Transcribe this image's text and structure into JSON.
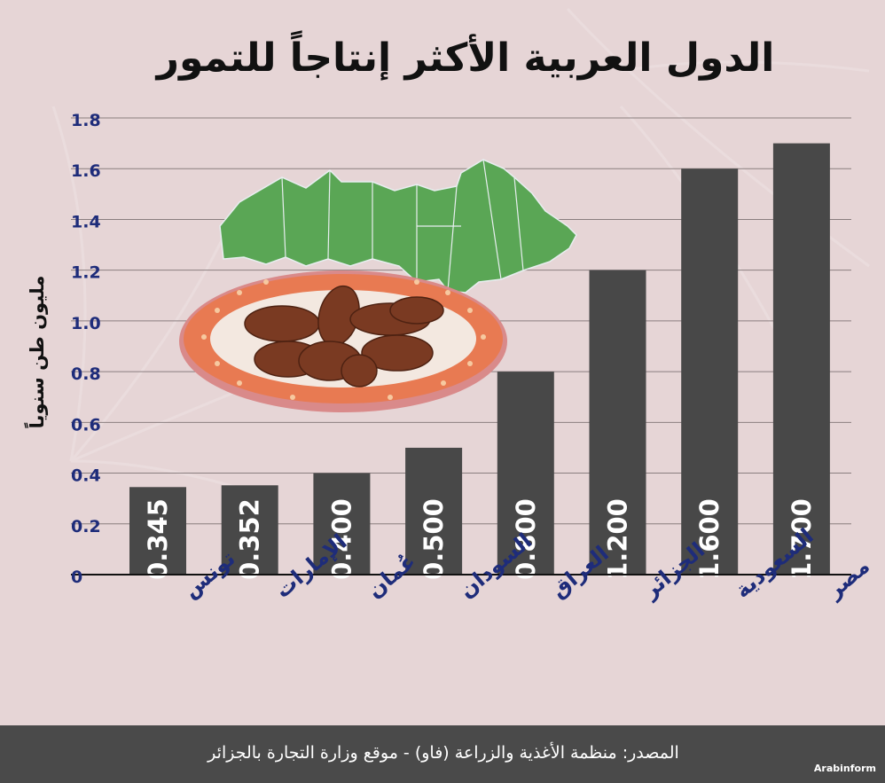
{
  "title": "الدول العربية الأكثر إنتاجاً للتمور",
  "source": "المصدر: منظمة الأغذية والزراعة (فاو) - موقع وزارة التجارة بالجزائر",
  "brand": "Arabinform",
  "chart_data": {
    "type": "bar",
    "title": "الدول العربية الأكثر إنتاجاً للتمور",
    "ylabel": "مليون طن سنوياً",
    "xlabel": "",
    "categories": [
      "تونس",
      "الإمارات",
      "عُمان",
      "السودان",
      "العراق",
      "الجزائر",
      "السعودية",
      "مصر"
    ],
    "values": [
      0.345,
      0.352,
      0.4,
      0.5,
      0.8,
      1.2,
      1.6,
      1.7
    ],
    "value_labels": [
      "0.345",
      "0.352",
      "0.400",
      "0.500",
      "0.800",
      "1.200",
      "1.600",
      "1.700"
    ],
    "ylim": [
      0,
      1.8
    ],
    "yticks": [
      {
        "value": 0,
        "label": "0"
      },
      {
        "value": 0.2,
        "label": "0.2"
      },
      {
        "value": 0.4,
        "label": "0.4"
      },
      {
        "value": 0.6,
        "label": "0.6"
      },
      {
        "value": 0.8,
        "label": "0.8"
      },
      {
        "value": 1.0,
        "label": "1.0"
      },
      {
        "value": 1.2,
        "label": "1.2"
      },
      {
        "value": 1.4,
        "label": "1.4"
      },
      {
        "value": 1.6,
        "label": "1.6"
      },
      {
        "value": 1.8,
        "label": "1.8"
      }
    ],
    "grid": true,
    "legend": "none",
    "bar_color": "#484848",
    "value_label_color": "#ffffff",
    "tick_color": "#1e2c7a",
    "category_color": "#1e2c7a",
    "grid_color": "#8a7e7f",
    "decoration_icons": [
      "arab-world-map-icon",
      "dates-plate-icon"
    ]
  }
}
